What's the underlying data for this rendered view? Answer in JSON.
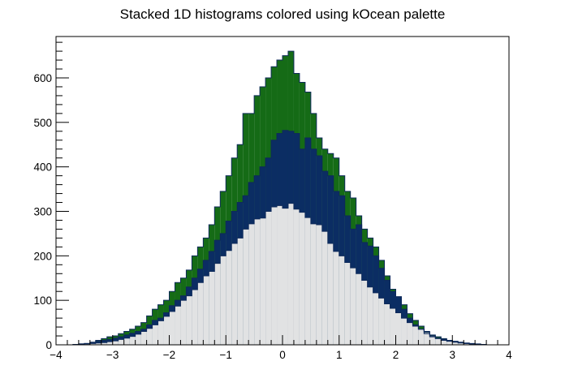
{
  "chart_data": {
    "type": "bar",
    "stacked": true,
    "title": "Stacked 1D histograms colored using kOcean palette",
    "xlabel": "",
    "ylabel": "",
    "xlim": [
      -4,
      4
    ],
    "ylim": [
      0,
      693
    ],
    "bin_width": 0.1,
    "x_bin_starts": [
      -4.0,
      -3.9,
      -3.8,
      -3.7,
      -3.6,
      -3.5,
      -3.4,
      -3.3,
      -3.2,
      -3.1,
      -3.0,
      -2.9,
      -2.8,
      -2.7,
      -2.6,
      -2.5,
      -2.4,
      -2.3,
      -2.2,
      -2.1,
      -2.0,
      -1.9,
      -1.8,
      -1.7,
      -1.6,
      -1.5,
      -1.4,
      -1.3,
      -1.2,
      -1.1,
      -1.0,
      -0.9,
      -0.8,
      -0.7,
      -0.6,
      -0.5,
      -0.4,
      -0.3,
      -0.2,
      -0.1,
      0.0,
      0.1,
      0.2,
      0.3,
      0.4,
      0.5,
      0.6,
      0.7,
      0.8,
      0.9,
      1.0,
      1.1,
      1.2,
      1.3,
      1.4,
      1.5,
      1.6,
      1.7,
      1.8,
      1.9,
      2.0,
      2.1,
      2.2,
      2.3,
      2.4,
      2.5,
      2.6,
      2.7,
      2.8,
      2.9,
      3.0,
      3.1,
      3.2,
      3.3,
      3.4,
      3.5,
      3.6,
      3.7,
      3.8,
      3.9
    ],
    "x_ticks": [
      -4,
      -3,
      -2,
      -1,
      0,
      1,
      2,
      3,
      4
    ],
    "y_ticks": [
      0,
      100,
      200,
      300,
      400,
      500,
      600
    ],
    "grid": false,
    "legend": "none",
    "colors": {
      "bottom_fill": "#e1e2e3",
      "middle_fill": "#0b2d63",
      "top_fill": "#156b16",
      "outline": "#0e2a5a",
      "axis": "#000000"
    },
    "cumulative_levels": {
      "bottom": [
        0,
        0,
        0,
        1,
        1,
        2,
        3,
        4,
        5,
        7,
        9,
        12,
        15,
        19,
        24,
        30,
        37,
        45,
        54,
        64,
        75,
        87,
        100,
        110,
        124,
        140,
        155,
        165,
        183,
        200,
        212,
        228,
        240,
        260,
        272,
        283,
        285,
        300,
        310,
        313,
        307,
        318,
        305,
        298,
        286,
        272,
        270,
        255,
        228,
        210,
        200,
        185,
        173,
        160,
        145,
        130,
        117,
        105,
        92,
        82,
        72,
        60,
        50,
        42,
        35,
        28,
        20,
        15,
        10,
        8,
        6,
        4,
        3,
        2,
        1,
        1,
        0,
        0,
        0,
        0
      ],
      "middle": [
        0,
        0,
        0,
        1,
        2,
        3,
        5,
        8,
        10,
        12,
        15,
        18,
        22,
        26,
        30,
        35,
        45,
        55,
        60,
        72,
        88,
        100,
        110,
        130,
        150,
        170,
        190,
        210,
        235,
        250,
        278,
        300,
        320,
        335,
        365,
        380,
        400,
        420,
        460,
        475,
        482,
        480,
        475,
        440,
        465,
        440,
        425,
        390,
        380,
        345,
        335,
        290,
        260,
        270,
        230,
        222,
        200,
        172,
        145,
        120,
        108,
        80,
        60,
        45,
        35,
        25,
        18,
        14,
        12,
        10,
        7,
        5,
        3,
        2,
        1,
        1,
        0,
        0,
        0,
        0
      ],
      "top": [
        0,
        0,
        0,
        1,
        2,
        3,
        6,
        10,
        14,
        18,
        20,
        25,
        30,
        35,
        42,
        50,
        65,
        80,
        90,
        100,
        120,
        140,
        150,
        168,
        200,
        220,
        240,
        270,
        310,
        345,
        380,
        420,
        450,
        520,
        520,
        560,
        580,
        600,
        625,
        640,
        650,
        660,
        610,
        590,
        568,
        520,
        465,
        440,
        430,
        420,
        380,
        345,
        330,
        290,
        260,
        240,
        220,
        190,
        155,
        125,
        108,
        90,
        70,
        55,
        42,
        30,
        22,
        18,
        14,
        10,
        8,
        6,
        4,
        3,
        2,
        1,
        0,
        0,
        0,
        0
      ]
    }
  }
}
